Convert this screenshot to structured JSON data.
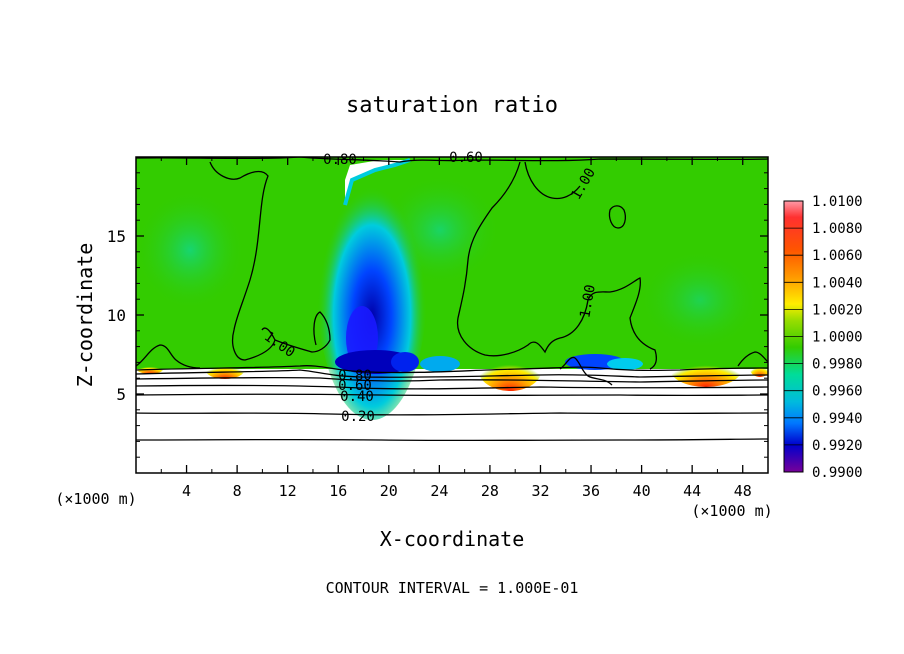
{
  "chart_data": {
    "type": "heatmap",
    "title": "saturation ratio",
    "xlabel": "X-coordinate",
    "ylabel": "Z-coordinate",
    "x_unit_left": "(×1000 m)",
    "x_unit_right": "(×1000 m)",
    "xlim": [
      0,
      50
    ],
    "ylim": [
      0,
      20
    ],
    "x_ticks": [
      "4",
      "8",
      "12",
      "16",
      "20",
      "24",
      "28",
      "32",
      "36",
      "40",
      "44",
      "48"
    ],
    "y_ticks": [
      "5",
      "10",
      "15"
    ],
    "footer": "CONTOUR INTERVAL = 1.000E-01",
    "colorbar": {
      "labels": [
        "1.0100",
        "1.0080",
        "1.0060",
        "1.0040",
        "1.0020",
        "1.0000",
        "0.9980",
        "0.9960",
        "0.9940",
        "0.9920",
        "0.9900"
      ],
      "range": [
        0.99,
        1.01
      ],
      "colors": [
        "#ff9aa8",
        "#ff0000",
        "#ff5500",
        "#ff9900",
        "#ffff00",
        "#99dd00",
        "#33cc00",
        "#00dd99",
        "#00bbbb",
        "#0088ff",
        "#0000cc",
        "#4400aa",
        "#770099"
      ]
    },
    "contour_labels": [
      {
        "text": "1.00",
        "x": 21.9,
        "y": 12.8
      },
      {
        "text": "1.00",
        "x": 33.8,
        "y": 18.2
      },
      {
        "text": "1.00",
        "x": 34.7,
        "y": 10.8
      },
      {
        "text": "0.80",
        "x": 16.0,
        "y": 5.9
      },
      {
        "text": "0.60",
        "x": 16.0,
        "y": 5.4
      },
      {
        "text": "0.40",
        "x": 16.0,
        "y": 4.9
      },
      {
        "text": "0.20",
        "x": 16.0,
        "y": 3.6
      },
      {
        "text": "0.60",
        "x": 25.5,
        "y": 19.8
      },
      {
        "text": "0.80",
        "x": 15.5,
        "y": 19.7
      }
    ],
    "cloud_base_z": 6.5,
    "domain_top_z": 19.7
  }
}
